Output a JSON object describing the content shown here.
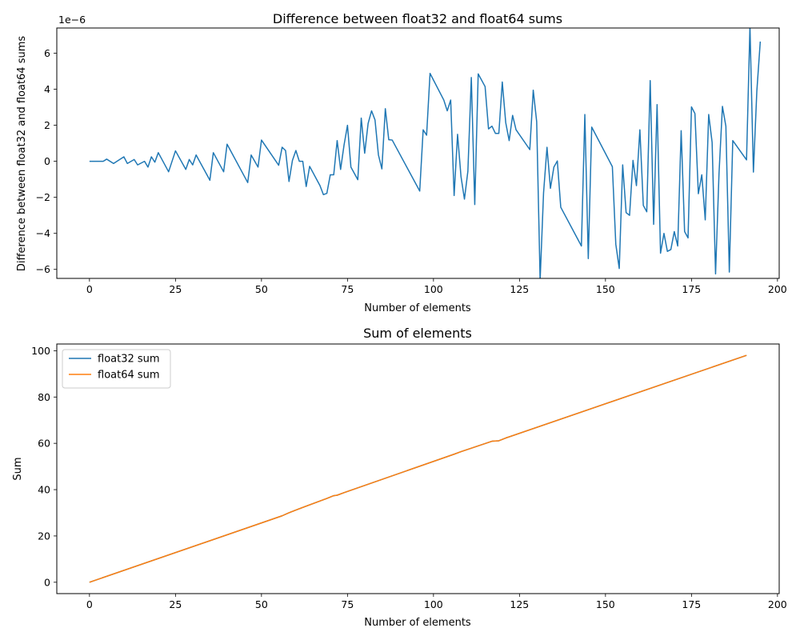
{
  "colors": {
    "float32": "#1f77b4",
    "float64": "#ff7f0e",
    "axis": "#000000",
    "legend_border": "#cccccc"
  },
  "chart_data": [
    {
      "type": "line",
      "title": "Difference between float32 and float64 sums",
      "xlabel": "Number of elements",
      "ylabel": "Difference between float32 and float64 sums",
      "offset_text": "1e−6",
      "xlim": [
        -9.5,
        200.5
      ],
      "ylim": [
        -6.5,
        7.4
      ],
      "x_ticks": [
        0,
        25,
        50,
        75,
        100,
        125,
        150,
        175,
        200
      ],
      "y_ticks": [
        -6,
        -4,
        -2,
        0,
        2,
        4,
        6
      ],
      "y_tick_labels": [
        "−6",
        "−4",
        "−2",
        "0",
        "2",
        "4",
        "6"
      ],
      "legend": null,
      "series": [
        {
          "color": "#1f77b4",
          "points": [
            [
              0,
              0
            ],
            [
              4,
              0
            ],
            [
              5,
              0.12
            ],
            [
              7,
              -0.12
            ],
            [
              10,
              0.25
            ],
            [
              11,
              -0.12
            ],
            [
              13,
              0.1
            ],
            [
              14,
              -0.2
            ],
            [
              16,
              0
            ],
            [
              17,
              -0.32
            ],
            [
              18,
              0.25
            ],
            [
              19,
              -0.05
            ],
            [
              20,
              0.48
            ],
            [
              23,
              -0.58
            ],
            [
              25,
              0.58
            ],
            [
              28,
              -0.45
            ],
            [
              29,
              0.1
            ],
            [
              30,
              -0.2
            ],
            [
              31,
              0.35
            ],
            [
              35,
              -1.05
            ],
            [
              36,
              0.48
            ],
            [
              39,
              -0.58
            ],
            [
              40,
              0.95
            ],
            [
              46,
              -1.18
            ],
            [
              47,
              0.35
            ],
            [
              49,
              -0.32
            ],
            [
              50,
              1.18
            ],
            [
              55,
              -0.22
            ],
            [
              56,
              0.78
            ],
            [
              57,
              0.6
            ],
            [
              58,
              -1.12
            ],
            [
              59,
              0.05
            ],
            [
              60,
              0.6
            ],
            [
              61,
              0
            ],
            [
              62,
              0
            ],
            [
              63,
              -1.4
            ],
            [
              64,
              -0.28
            ],
            [
              67,
              -1.35
            ],
            [
              68,
              -1.85
            ],
            [
              69,
              -1.78
            ],
            [
              70,
              -0.75
            ],
            [
              71,
              -0.75
            ],
            [
              72,
              1.15
            ],
            [
              73,
              -0.45
            ],
            [
              74,
              0.9
            ],
            [
              75,
              2
            ],
            [
              76,
              -0.32
            ],
            [
              78,
              -1.02
            ],
            [
              79,
              2.4
            ],
            [
              80,
              0.45
            ],
            [
              81,
              2.1
            ],
            [
              82,
              2.8
            ],
            [
              83,
              2.3
            ],
            [
              84,
              0.35
            ],
            [
              85,
              -0.42
            ],
            [
              86,
              2.92
            ],
            [
              87,
              1.2
            ],
            [
              88,
              1.18
            ],
            [
              96,
              -1.65
            ],
            [
              97,
              1.75
            ],
            [
              98,
              1.45
            ],
            [
              99,
              4.88
            ],
            [
              103,
              3.4
            ],
            [
              104,
              2.8
            ],
            [
              105,
              3.4
            ],
            [
              106,
              -1.9
            ],
            [
              107,
              1.5
            ],
            [
              108,
              -0.85
            ],
            [
              109,
              -2.1
            ],
            [
              110,
              -0.55
            ],
            [
              111,
              4.65
            ],
            [
              112,
              -2.4
            ],
            [
              113,
              4.85
            ],
            [
              115,
              4.15
            ],
            [
              116,
              1.8
            ],
            [
              117,
              1.95
            ],
            [
              118,
              1.55
            ],
            [
              119,
              1.55
            ],
            [
              120,
              4.4
            ],
            [
              121,
              2.15
            ],
            [
              122,
              1.15
            ],
            [
              123,
              2.55
            ],
            [
              124,
              1.75
            ],
            [
              128,
              0.65
            ],
            [
              129,
              3.95
            ],
            [
              130,
              2.2
            ],
            [
              131,
              -6.6
            ],
            [
              132,
              -1.75
            ],
            [
              133,
              0.78
            ],
            [
              134,
              -1.5
            ],
            [
              135,
              -0.32
            ],
            [
              136,
              0.02
            ],
            [
              137,
              -2.55
            ],
            [
              143,
              -4.7
            ],
            [
              144,
              2.6
            ],
            [
              145,
              -5.4
            ],
            [
              146,
              1.9
            ],
            [
              152,
              -0.3
            ],
            [
              153,
              -4.6
            ],
            [
              154,
              -5.95
            ],
            [
              155,
              -0.2
            ],
            [
              156,
              -2.85
            ],
            [
              157,
              -3
            ],
            [
              158,
              0.05
            ],
            [
              159,
              -1.35
            ],
            [
              160,
              1.75
            ],
            [
              161,
              -2.45
            ],
            [
              162,
              -2.8
            ],
            [
              163,
              4.48
            ],
            [
              164,
              -3.5
            ],
            [
              165,
              3.15
            ],
            [
              166,
              -5.1
            ],
            [
              167,
              -4
            ],
            [
              168,
              -5
            ],
            [
              169,
              -4.9
            ],
            [
              170,
              -3.9
            ],
            [
              171,
              -4.7
            ],
            [
              172,
              1.7
            ],
            [
              173,
              -3.9
            ],
            [
              174,
              -4.25
            ],
            [
              175,
              3.02
            ],
            [
              176,
              2.65
            ],
            [
              177,
              -1.8
            ],
            [
              178,
              -0.75
            ],
            [
              179,
              -3.25
            ],
            [
              180,
              2.6
            ],
            [
              181,
              1.05
            ],
            [
              182,
              -6.25
            ],
            [
              183,
              -0.7
            ],
            [
              184,
              3.05
            ],
            [
              185,
              1.95
            ],
            [
              186,
              -6.15
            ],
            [
              187,
              1.15
            ],
            [
              191,
              0.08
            ],
            [
              192,
              7.5
            ],
            [
              193,
              -0.6
            ],
            [
              194,
              3.9
            ],
            [
              195,
              6.65
            ]
          ]
        }
      ]
    },
    {
      "type": "line",
      "title": "Sum of elements",
      "xlabel": "Number of elements",
      "ylabel": "Sum",
      "xlim": [
        -9.5,
        200.5
      ],
      "ylim": [
        -4.9,
        102.9
      ],
      "x_ticks": [
        0,
        25,
        50,
        75,
        100,
        125,
        150,
        175,
        200
      ],
      "y_ticks": [
        0,
        20,
        40,
        60,
        80,
        100
      ],
      "legend": "upper-left",
      "series": [
        {
          "name": "float32 sum",
          "color": "#1f77b4",
          "x": [
            0,
            56,
            58,
            60,
            69,
            71,
            72,
            74,
            106,
            108,
            117,
            119,
            121,
            191
          ],
          "y": [
            0,
            28.7,
            30,
            31.2,
            36.2,
            37.4,
            37.6,
            38.7,
            55.3,
            56.4,
            60.9,
            61.1,
            62.3,
            98
          ]
        },
        {
          "name": "float64 sum",
          "color": "#ff7f0e",
          "x": [
            0,
            56,
            58,
            60,
            69,
            71,
            72,
            74,
            106,
            108,
            117,
            119,
            121,
            191
          ],
          "y": [
            0,
            28.7,
            30,
            31.2,
            36.2,
            37.4,
            37.6,
            38.7,
            55.3,
            56.4,
            60.9,
            61.1,
            62.3,
            98
          ]
        }
      ]
    }
  ]
}
